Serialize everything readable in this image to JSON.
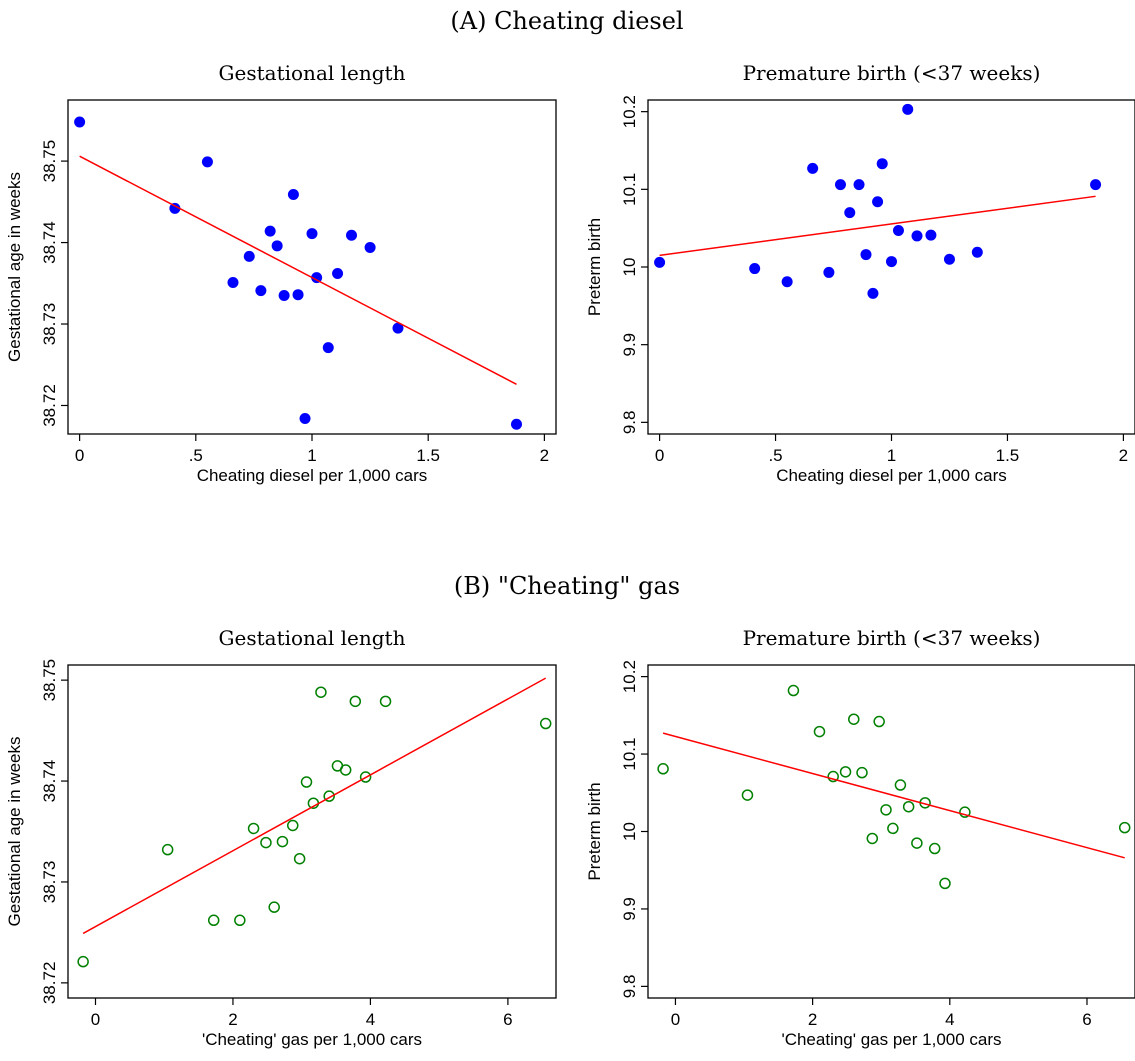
{
  "panels": [
    {
      "title": "(A) Cheating diesel"
    },
    {
      "title": "(B) \"Cheating\" gas"
    }
  ],
  "chart_data": [
    {
      "type": "scatter",
      "panel": "A",
      "title": "Gestational length",
      "xlabel": "Cheating diesel per 1,000 cars",
      "ylabel": "Gestational age in weeks",
      "xlim": [
        -0.05,
        2.05
      ],
      "ylim": [
        38.7165,
        38.7575
      ],
      "xticks": [
        0,
        0.5,
        1,
        1.5,
        2
      ],
      "xtick_labels": [
        "0",
        ".5",
        "1",
        "1.5",
        "2"
      ],
      "yticks": [
        38.72,
        38.73,
        38.74,
        38.75
      ],
      "ytick_labels": [
        "38.72",
        "38.73",
        "38.74",
        "38.75"
      ],
      "marker": "filled",
      "marker_color": "#0000ff",
      "fit_color": "#ff0000",
      "x": [
        0.0,
        0.41,
        0.55,
        0.66,
        0.73,
        0.78,
        0.82,
        0.85,
        0.88,
        0.92,
        0.94,
        0.97,
        1.0,
        1.02,
        1.07,
        1.11,
        1.17,
        1.25,
        1.37,
        1.88
      ],
      "y": [
        38.7548,
        38.7442,
        38.7499,
        38.7351,
        38.7383,
        38.7341,
        38.7414,
        38.7396,
        38.7335,
        38.7459,
        38.7336,
        38.7184,
        38.7411,
        38.7357,
        38.7271,
        38.7362,
        38.7409,
        38.7394,
        38.7295,
        38.7177
      ],
      "fit": {
        "x": [
          0,
          1.88
        ],
        "y": [
          38.7506,
          38.7226
        ]
      }
    },
    {
      "type": "scatter",
      "panel": "A",
      "title": "Premature birth (<37 weeks)",
      "xlabel": "Cheating diesel per 1,000 cars",
      "ylabel": "Preterm birth",
      "xlim": [
        -0.05,
        2.05
      ],
      "ylim": [
        9.785,
        10.215
      ],
      "xticks": [
        0,
        0.5,
        1,
        1.5,
        2
      ],
      "xtick_labels": [
        "0",
        ".5",
        "1",
        "1.5",
        "2"
      ],
      "yticks": [
        9.8,
        9.9,
        10.0,
        10.1,
        10.2
      ],
      "ytick_labels": [
        "9.8",
        "9.9",
        "10",
        "10.1",
        "10.2"
      ],
      "marker": "filled",
      "marker_color": "#0000ff",
      "fit_color": "#ff0000",
      "x": [
        0.0,
        0.41,
        0.55,
        0.66,
        0.73,
        0.78,
        0.82,
        0.86,
        0.89,
        0.92,
        0.94,
        0.96,
        1.0,
        1.03,
        1.07,
        1.11,
        1.17,
        1.25,
        1.37,
        1.88
      ],
      "y": [
        10.006,
        9.998,
        9.981,
        10.127,
        9.993,
        10.106,
        10.07,
        10.106,
        10.016,
        9.966,
        10.084,
        10.133,
        10.007,
        10.047,
        10.203,
        10.04,
        10.041,
        10.01,
        10.019,
        10.106
      ],
      "fit": {
        "x": [
          0,
          1.88
        ],
        "y": [
          10.015,
          10.091
        ]
      }
    },
    {
      "type": "scatter",
      "panel": "B",
      "title": "Gestational length",
      "xlabel": "'Cheating' gas per 1,000 cars",
      "ylabel": "Gestational age in weeks",
      "xlim": [
        -0.4,
        6.7
      ],
      "ylim": [
        38.7185,
        38.7515
      ],
      "xticks": [
        0,
        2,
        4,
        6
      ],
      "xtick_labels": [
        "0",
        "2",
        "4",
        "6"
      ],
      "yticks": [
        38.72,
        38.73,
        38.74,
        38.75
      ],
      "ytick_labels": [
        "38.72",
        "38.73",
        "38.74",
        "38.75"
      ],
      "marker": "hollow",
      "marker_color": "#008000",
      "fit_color": "#ff0000",
      "x": [
        -0.18,
        1.05,
        1.72,
        2.1,
        2.3,
        2.48,
        2.6,
        2.72,
        2.87,
        2.97,
        3.07,
        3.17,
        3.28,
        3.4,
        3.52,
        3.64,
        3.78,
        3.93,
        4.22,
        6.55
      ],
      "y": [
        38.7221,
        38.7332,
        38.7262,
        38.7262,
        38.7353,
        38.7339,
        38.7275,
        38.734,
        38.7356,
        38.7323,
        38.7399,
        38.7378,
        38.7488,
        38.7385,
        38.7415,
        38.7411,
        38.7479,
        38.7404,
        38.7479,
        38.7457
      ],
      "fit": {
        "x": [
          -0.18,
          6.55
        ],
        "y": [
          38.7249,
          38.7502
        ]
      }
    },
    {
      "type": "scatter",
      "panel": "B",
      "title": "Premature birth (<37 weeks)",
      "xlabel": "'Cheating' gas per 1,000 cars",
      "ylabel": "Preterm birth",
      "xlim": [
        -0.4,
        6.7
      ],
      "ylim": [
        9.785,
        10.215
      ],
      "xticks": [
        0,
        2,
        4,
        6
      ],
      "xtick_labels": [
        "0",
        "2",
        "4",
        "6"
      ],
      "yticks": [
        9.8,
        9.9,
        10.0,
        10.1,
        10.2
      ],
      "ytick_labels": [
        "9.8",
        "9.9",
        "10",
        "10.1",
        "10.2"
      ],
      "marker": "hollow",
      "marker_color": "#008000",
      "fit_color": "#ff0000",
      "x": [
        -0.18,
        1.05,
        1.72,
        2.1,
        2.3,
        2.48,
        2.6,
        2.72,
        2.87,
        2.97,
        3.07,
        3.17,
        3.28,
        3.4,
        3.52,
        3.64,
        3.78,
        3.93,
        4.22,
        6.55
      ],
      "y": [
        10.081,
        10.047,
        10.182,
        10.129,
        10.071,
        10.077,
        10.145,
        10.076,
        9.991,
        10.142,
        10.028,
        10.004,
        10.06,
        10.032,
        9.985,
        10.037,
        9.978,
        9.933,
        10.025,
        10.005
      ],
      "fit": {
        "x": [
          -0.18,
          6.55
        ],
        "y": [
          10.127,
          9.966
        ]
      }
    }
  ]
}
